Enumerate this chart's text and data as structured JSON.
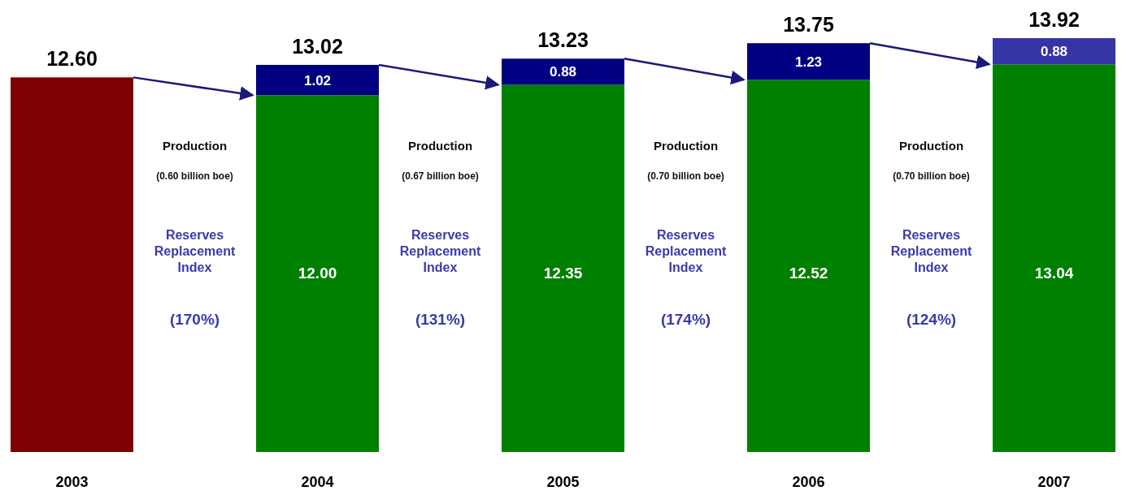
{
  "chart_data": {
    "type": "bar",
    "stacked": true,
    "categories": [
      "2003",
      "2004",
      "2005",
      "2006",
      "2007"
    ],
    "series": [
      {
        "colors": [
          "#7f0000",
          "#008000",
          "#008000",
          "#008000",
          "#008000"
        ],
        "values": [
          12.6,
          12.0,
          12.35,
          12.52,
          13.04
        ],
        "value_labels": [
          null,
          "12.00",
          "12.35",
          "12.52",
          "13.04"
        ]
      },
      {
        "colors": [
          null,
          "#000080",
          "#000080",
          "#000080",
          "#3535a5"
        ],
        "values": [
          null,
          1.02,
          0.88,
          1.23,
          0.88
        ],
        "value_labels": [
          null,
          "1.02",
          "0.88",
          "1.23",
          "0.88"
        ]
      }
    ],
    "totals": [
      "12.60",
      "13.02",
      "13.23",
      "13.75",
      "13.92"
    ],
    "annotations": [
      "Production",
      "(0.60 billion boe)",
      "Reserves Replacement Index",
      "(170%)",
      "Production",
      "(0.67 billion boe)",
      "Reserves Replacement Index",
      "(131%)",
      "Production",
      "(0.70 billion boe)",
      "Reserves Replacement Index",
      "(174%)",
      "Production",
      "(0.70 billion boe)",
      "Reserves Replacement Index",
      "(124%)"
    ]
  }
}
